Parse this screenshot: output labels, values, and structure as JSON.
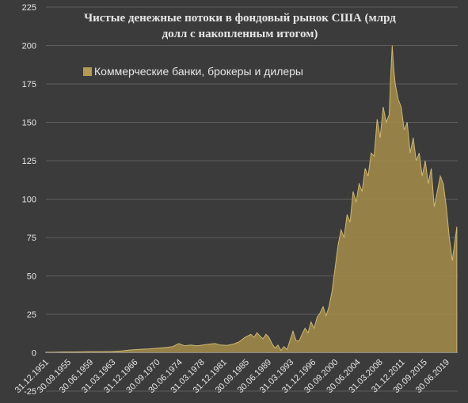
{
  "colors": {
    "background": "#3b3b3b",
    "grid": "#5e5e5e",
    "text": "#e6e6e6",
    "area_fill": "#a08a4a",
    "area_stroke": "#cfb871",
    "legend_swatch": "#b49a52"
  },
  "chart_data": {
    "type": "area",
    "title": "Чистые денежные потоки в фондовый рынок США (млрд долл с накопленным итогом)",
    "title_lines": [
      "Чистые денежные потоки в фондовый рынок США (млрд",
      "долл с накопленным итогом)"
    ],
    "xlabel": "",
    "ylabel": "",
    "ylim": [
      -25,
      225
    ],
    "yticks": [
      -25,
      0,
      25,
      50,
      75,
      100,
      125,
      150,
      175,
      200,
      225
    ],
    "ytick_labels": [
      "-25",
      "0",
      "25",
      "50",
      "75",
      "100",
      "125",
      "150",
      "175",
      "200",
      "225"
    ],
    "xtick_labels": [
      "31.12.1951",
      "30.09.1955",
      "30.06.1959",
      "31.03.1963",
      "31.12.1966",
      "30.09.1970",
      "30.06.1974",
      "31.03.1978",
      "31.12.1981",
      "30.09.1985",
      "30.06.1989",
      "31.03.1993",
      "31.12.1996",
      "30.09.2000",
      "30.06.2004",
      "31.03.2008",
      "31.12.2011",
      "30.09.2015",
      "30.06.2019"
    ],
    "grid": "horizontal",
    "legend_position": "upper-left",
    "series": [
      {
        "name": "Коммерческие банки, брокеры и дилеры",
        "x": [
          1951.9,
          1953,
          1955,
          1957,
          1959,
          1961,
          1963,
          1964.5,
          1966,
          1967.5,
          1969,
          1970.5,
          1972,
          1973,
          1974,
          1975,
          1976,
          1977,
          1978,
          1979,
          1980,
          1981,
          1982,
          1983,
          1984,
          1984.5,
          1985,
          1985.5,
          1986,
          1986.5,
          1987,
          1987.5,
          1988,
          1988.5,
          1989,
          1989.5,
          1990,
          1990.5,
          1991,
          1991.5,
          1992,
          1992.5,
          1993,
          1993.5,
          1994,
          1994.5,
          1995,
          1995.5,
          1996,
          1996.5,
          1997,
          1997.5,
          1998,
          1998.5,
          1999,
          1999.5,
          2000,
          2000.5,
          2001,
          2001.5,
          2002,
          2002.5,
          2003,
          2003.5,
          2004,
          2004.5,
          2005,
          2005.5,
          2006,
          2006.5,
          2007,
          2007.5,
          2008,
          2008.5,
          2009,
          2009.25,
          2009.5,
          2009.75,
          2010,
          2010.5,
          2011,
          2011.5,
          2012,
          2012.5,
          2013,
          2013.5,
          2014,
          2014.5,
          2015,
          2015.5,
          2016,
          2016.5,
          2017,
          2017.5,
          2018,
          2018.5,
          2019,
          2019.5,
          2020.25
        ],
        "y": [
          0.3,
          0.3,
          0.5,
          0.5,
          0.7,
          0.7,
          0.8,
          1.2,
          1.8,
          2.2,
          2.5,
          3.0,
          3.5,
          4.0,
          6.0,
          4.5,
          5.0,
          4.5,
          5.0,
          5.5,
          6.0,
          5.0,
          4.8,
          5.5,
          7.0,
          8.5,
          10.0,
          11.0,
          12.0,
          10.0,
          13.0,
          11.0,
          9.0,
          12.0,
          10.0,
          6.0,
          3.0,
          5.0,
          1.5,
          4.0,
          2.0,
          8.0,
          14.0,
          8.0,
          7.5,
          12.0,
          16.0,
          13.0,
          20.0,
          16.0,
          23.0,
          26.0,
          30.0,
          24.0,
          30.0,
          40.0,
          55.0,
          70.0,
          80.0,
          75.0,
          90.0,
          85.0,
          105.0,
          98.0,
          110.0,
          105.0,
          120.0,
          115.0,
          130.0,
          128.0,
          152.0,
          140.0,
          160.0,
          150.0,
          155.0,
          180.0,
          200.0,
          185.0,
          175.0,
          165.0,
          160.0,
          145.0,
          150.0,
          130.0,
          140.0,
          125.0,
          130.0,
          115.0,
          125.0,
          110.0,
          120.0,
          95.0,
          105.0,
          115.0,
          110.0,
          95.0,
          75.0,
          60.0,
          82.0
        ]
      }
    ]
  }
}
